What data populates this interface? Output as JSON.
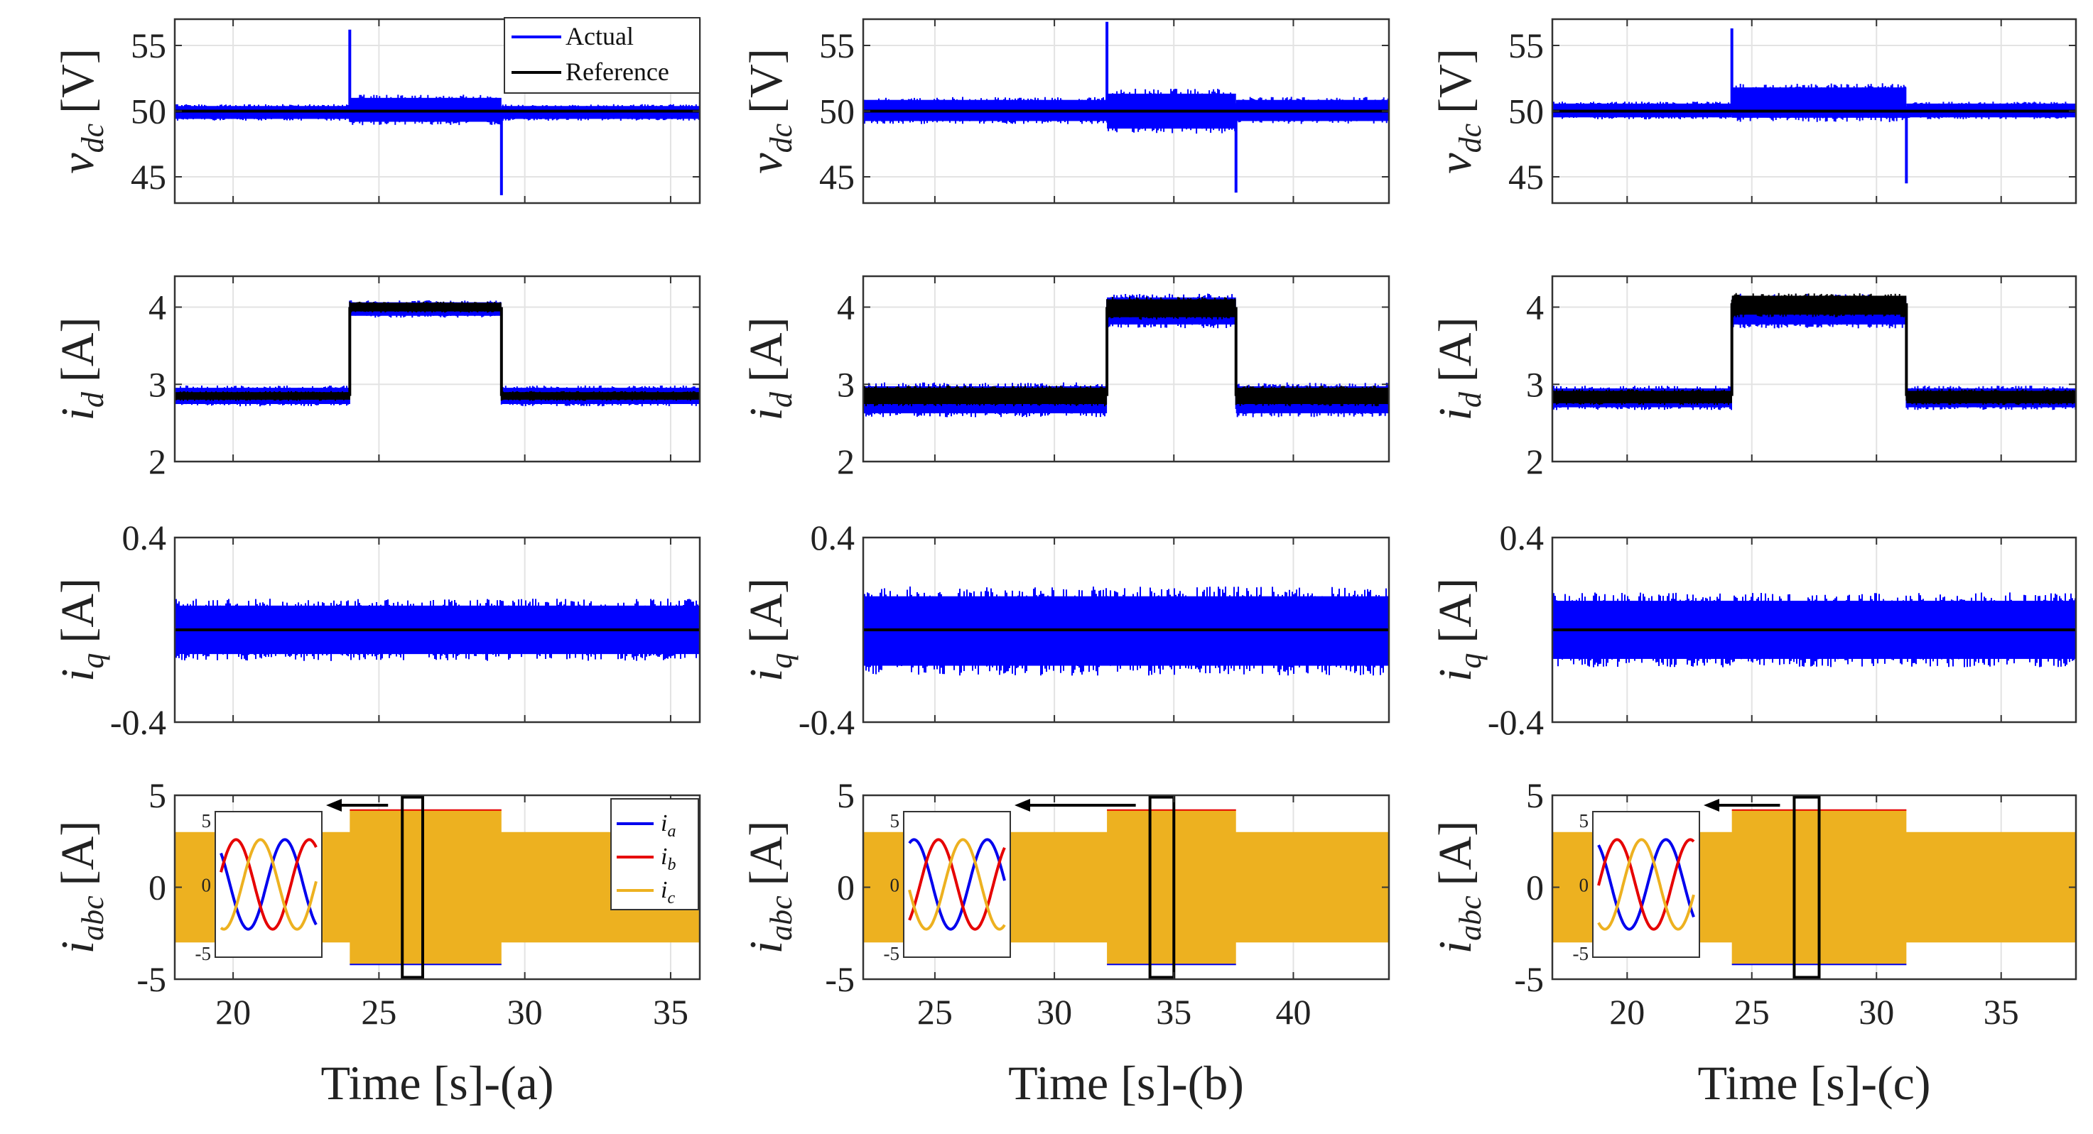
{
  "colors": {
    "actual": "#0000ff",
    "reference": "#000000",
    "ia": "#0000ee",
    "ib": "#e60000",
    "ic": "#edb120"
  },
  "legend_top": {
    "actual": "Actual",
    "reference": "Reference"
  },
  "legend_currents": {
    "ia": "i",
    "ia_sub": "a",
    "ib": "i",
    "ib_sub": "b",
    "ic": "i",
    "ic_sub": "c"
  },
  "row_labels": {
    "vdc": {
      "main": "v",
      "sub": "dc",
      "unit": "[V]"
    },
    "id": {
      "main": "i",
      "sub": "d",
      "unit": "[A]"
    },
    "iq": {
      "main": "i",
      "sub": "q",
      "unit": "[A]"
    },
    "iabc": {
      "main": "i",
      "sub": "abc",
      "unit": "[A]"
    }
  },
  "chart_data": [
    {
      "type": "line",
      "column": "a",
      "xlabel": "Time [s]-(a)",
      "xlim": [
        18,
        36
      ],
      "xticks": [
        "20",
        "25",
        "30",
        "35"
      ],
      "step_on": 24.0,
      "step_off": 29.2,
      "zoom_window": [
        25.8,
        26.5
      ],
      "panels": {
        "vdc": {
          "ylim": [
            43,
            57
          ],
          "yticks": [
            "45",
            "50",
            "55"
          ],
          "reference": 50,
          "actual_band_base": [
            49.2,
            50.6
          ],
          "actual_band_step": [
            48.8,
            51.4
          ],
          "spikes": [
            [
              24.0,
              56.2
            ],
            [
              29.2,
              43.6
            ]
          ]
        },
        "id": {
          "ylim": [
            2,
            4.4
          ],
          "yticks": [
            "2",
            "3",
            "4"
          ],
          "reference_base": 2.85,
          "reference_step": 4.0,
          "actual_band_base": [
            2.7,
            3.0
          ],
          "actual_band_step": [
            3.85,
            4.1
          ],
          "ref_band_base": [
            2.78,
            2.92
          ],
          "ref_band_step": [
            3.92,
            4.08
          ]
        },
        "iq": {
          "ylim": [
            -0.4,
            0.4
          ],
          "yticks": [
            "0.4",
            "-0.4"
          ],
          "reference": 0,
          "actual_band": [
            -0.15,
            0.15
          ]
        },
        "iabc": {
          "ylim": [
            -5,
            5
          ],
          "yticks": [
            "5",
            "0",
            "-5"
          ],
          "amp_base": 3.0,
          "amp_step": 4.2
        }
      },
      "inset": {
        "yticks": [
          "5",
          "0",
          "-5"
        ],
        "phase_a_start": 0.8
      }
    },
    {
      "type": "line",
      "column": "b",
      "xlabel": "Time [s]-(b)",
      "xlim": [
        22,
        44
      ],
      "xticks": [
        "25",
        "30",
        "35",
        "40"
      ],
      "step_on": 32.2,
      "step_off": 37.6,
      "zoom_window": [
        34.0,
        35.0
      ],
      "panels": {
        "vdc": {
          "ylim": [
            43,
            57
          ],
          "yticks": [
            "45",
            "50",
            "55"
          ],
          "reference": 50,
          "actual_band_base": [
            48.9,
            51.2
          ],
          "actual_band_step": [
            48.1,
            51.9
          ],
          "spikes": [
            [
              32.2,
              56.8
            ],
            [
              37.6,
              43.8
            ]
          ]
        },
        "id": {
          "ylim": [
            2,
            4.4
          ],
          "yticks": [
            "2",
            "3",
            "4"
          ],
          "reference_base": 2.85,
          "reference_step": 4.0,
          "actual_band_base": [
            2.55,
            3.05
          ],
          "actual_band_step": [
            3.7,
            4.2
          ],
          "ref_band_base": [
            2.7,
            3.0
          ],
          "ref_band_step": [
            3.82,
            4.15
          ]
        },
        "iq": {
          "ylim": [
            -0.4,
            0.4
          ],
          "yticks": [
            "0.4",
            "-0.4"
          ],
          "reference": 0,
          "actual_band": [
            -0.22,
            0.21
          ]
        },
        "iabc": {
          "ylim": [
            -5,
            5
          ],
          "yticks": [
            "5",
            "0",
            "-5"
          ],
          "amp_base": 3.0,
          "amp_step": 4.2
        }
      },
      "inset": {
        "yticks": [
          "5",
          "0",
          "-5"
        ],
        "phase_a_start": -0.4
      }
    },
    {
      "type": "line",
      "column": "c",
      "xlabel": "Time [s]-(c)",
      "xlim": [
        17,
        38
      ],
      "xticks": [
        "20",
        "25",
        "30",
        "35"
      ],
      "step_on": 24.2,
      "step_off": 31.2,
      "zoom_window": [
        26.7,
        27.7
      ],
      "panels": {
        "vdc": {
          "ylim": [
            43,
            57
          ],
          "yticks": [
            "45",
            "50",
            "55"
          ],
          "reference": 50,
          "actual_band_base": [
            49.3,
            50.8
          ],
          "actual_band_step": [
            49.0,
            52.3
          ],
          "spikes": [
            [
              24.2,
              56.3
            ],
            [
              31.2,
              44.5
            ]
          ]
        },
        "id": {
          "ylim": [
            2,
            4.4
          ],
          "yticks": [
            "2",
            "3",
            "4"
          ],
          "reference_base": 2.85,
          "reference_step": 4.05,
          "actual_band_base": [
            2.65,
            3.0
          ],
          "actual_band_step": [
            3.7,
            4.2
          ],
          "ref_band_base": [
            2.72,
            2.95
          ],
          "ref_band_step": [
            3.85,
            4.2
          ]
        },
        "iq": {
          "ylim": [
            -0.4,
            0.4
          ],
          "yticks": [
            "0.4",
            "-0.4"
          ],
          "reference": 0,
          "actual_band": [
            -0.18,
            0.18
          ]
        },
        "iabc": {
          "ylim": [
            -5,
            5
          ],
          "yticks": [
            "5",
            "0",
            "-5"
          ],
          "amp_base": 3.0,
          "amp_step": 4.2
        }
      },
      "inset": {
        "yticks": [
          "5",
          "0",
          "-5"
        ],
        "phase_a_start": 0.5
      }
    }
  ]
}
